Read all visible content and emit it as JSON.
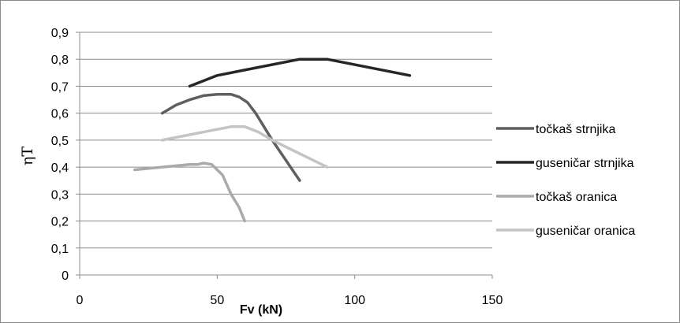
{
  "chart_data": {
    "type": "line",
    "title": "",
    "xlabel": "Fv (kN)",
    "ylabel": "ηT",
    "xlim": [
      0,
      150
    ],
    "ylim": [
      0,
      0.9
    ],
    "x_ticks": [
      "0",
      "50",
      "100",
      "150"
    ],
    "y_ticks": [
      "0",
      "0,1",
      "0,2",
      "0,3",
      "0,4",
      "0,5",
      "0,6",
      "0,7",
      "0,8",
      "0,9"
    ],
    "grid": "horizontal",
    "legend_position": "right",
    "series": [
      {
        "name": "točkaš strnjika",
        "color": "#5f5f5f",
        "points": [
          [
            30,
            0.6
          ],
          [
            35,
            0.63
          ],
          [
            40,
            0.65
          ],
          [
            45,
            0.665
          ],
          [
            50,
            0.67
          ],
          [
            55,
            0.67
          ],
          [
            58,
            0.66
          ],
          [
            61,
            0.64
          ],
          [
            64,
            0.6
          ],
          [
            70,
            0.5
          ],
          [
            80,
            0.35
          ]
        ]
      },
      {
        "name": "guseničar strnjika",
        "color": "#262626",
        "points": [
          [
            40,
            0.7
          ],
          [
            50,
            0.74
          ],
          [
            60,
            0.76
          ],
          [
            80,
            0.8
          ],
          [
            90,
            0.8
          ],
          [
            120,
            0.74
          ]
        ]
      },
      {
        "name": "točkaš oranica",
        "color": "#aaaaaa",
        "points": [
          [
            20,
            0.39
          ],
          [
            30,
            0.4
          ],
          [
            40,
            0.41
          ],
          [
            43,
            0.41
          ],
          [
            45,
            0.415
          ],
          [
            48,
            0.41
          ],
          [
            50,
            0.39
          ],
          [
            52,
            0.37
          ],
          [
            55,
            0.3
          ],
          [
            58,
            0.25
          ],
          [
            60,
            0.2
          ]
        ]
      },
      {
        "name": "guseničar oranica",
        "color": "#c4c4c4",
        "points": [
          [
            30,
            0.5
          ],
          [
            40,
            0.52
          ],
          [
            50,
            0.54
          ],
          [
            55,
            0.55
          ],
          [
            60,
            0.55
          ],
          [
            65,
            0.53
          ],
          [
            70,
            0.5
          ],
          [
            80,
            0.45
          ],
          [
            90,
            0.4
          ]
        ]
      }
    ]
  }
}
